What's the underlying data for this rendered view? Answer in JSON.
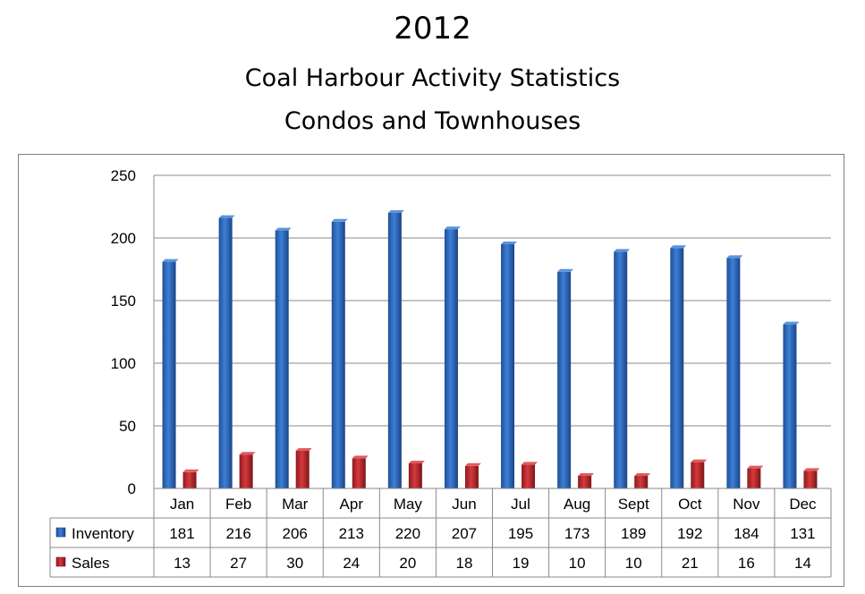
{
  "header": {
    "title": "2012",
    "subtitle1": "Coal Harbour Activity Statistics",
    "subtitle2": "Condos and Townhouses"
  },
  "chart_data": {
    "type": "bar",
    "title": "2012",
    "subtitle": [
      "Coal Harbour Activity Statistics",
      "Condos and Townhouses"
    ],
    "categories": [
      "Jan",
      "Feb",
      "Mar",
      "Apr",
      "May",
      "Jun",
      "Jul",
      "Aug",
      "Sept",
      "Oct",
      "Nov",
      "Dec"
    ],
    "series": [
      {
        "name": "Inventory",
        "color": "#2e6bc2",
        "values": [
          181,
          216,
          206,
          213,
          220,
          207,
          195,
          173,
          189,
          192,
          184,
          131
        ]
      },
      {
        "name": "Sales",
        "color": "#c0282d",
        "values": [
          13,
          27,
          30,
          24,
          20,
          18,
          19,
          10,
          10,
          21,
          16,
          14
        ]
      }
    ],
    "ylim": [
      0,
      250
    ],
    "yticks": [
      0,
      50,
      100,
      150,
      200,
      250
    ],
    "grid": true,
    "legend": "data-table",
    "style": "3d-column"
  }
}
